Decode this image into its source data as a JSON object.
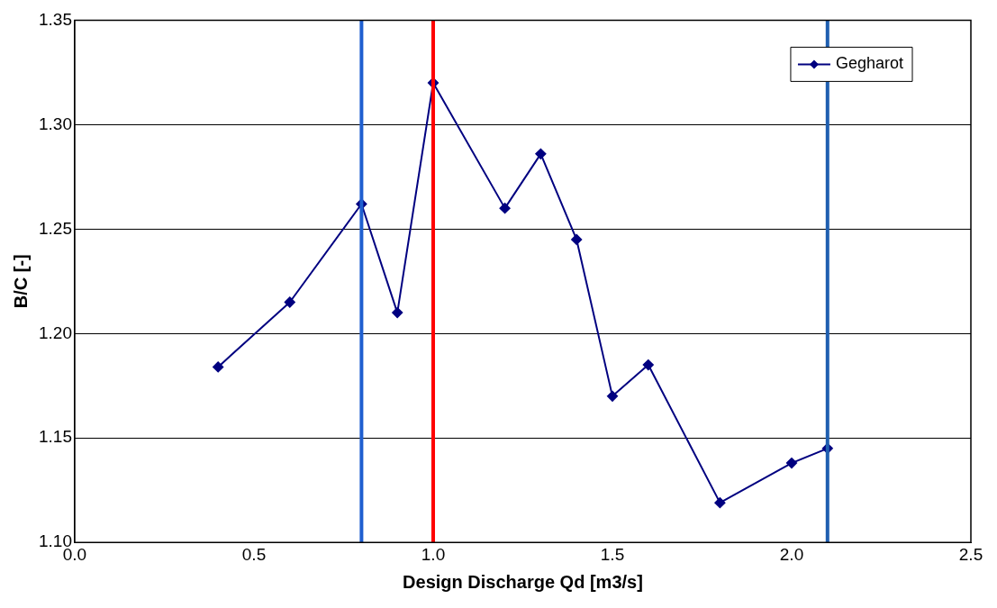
{
  "chart_data": {
    "type": "line",
    "xlabel": "Design Discharge Qd [m3/s]",
    "ylabel": "B/C [-]",
    "x": [
      0.4,
      0.6,
      0.8,
      0.9,
      1.0,
      1.2,
      1.3,
      1.4,
      1.5,
      1.6,
      1.8,
      2.0,
      2.1
    ],
    "series": [
      {
        "name": "Gegharot",
        "color": "#000080",
        "values": [
          1.184,
          1.215,
          1.262,
          1.21,
          1.32,
          1.26,
          1.286,
          1.245,
          1.17,
          1.185,
          1.119,
          1.138,
          1.145
        ]
      }
    ],
    "xlim": [
      0,
      2.5
    ],
    "xticks": [
      {
        "value": 0,
        "label": "0.0"
      },
      {
        "value": 0.5,
        "label": "0.5"
      },
      {
        "value": 1,
        "label": "1.0"
      },
      {
        "value": 1.5,
        "label": "1.5"
      },
      {
        "value": 2,
        "label": "2.0"
      },
      {
        "value": 2.5,
        "label": "2.5"
      }
    ],
    "ylim": [
      1.1,
      1.35
    ],
    "yticks": [
      {
        "value": 1.1,
        "label": "1.10"
      },
      {
        "value": 1.15,
        "label": "1.15"
      },
      {
        "value": 1.2,
        "label": "1.20"
      },
      {
        "value": 1.25,
        "label": "1.25"
      },
      {
        "value": 1.3,
        "label": "1.30"
      },
      {
        "value": 1.35,
        "label": "1.35"
      }
    ],
    "ref_lines": [
      {
        "axis": "x",
        "value": 0.8,
        "color": "#1f5fd0"
      },
      {
        "axis": "x",
        "value": 1.0,
        "color": "#ff0000"
      },
      {
        "axis": "x",
        "value": 2.1,
        "color": "#1f5fb0"
      }
    ],
    "grid": "y",
    "legend": "top right",
    "marker": "diamond",
    "line_style": "solid"
  }
}
